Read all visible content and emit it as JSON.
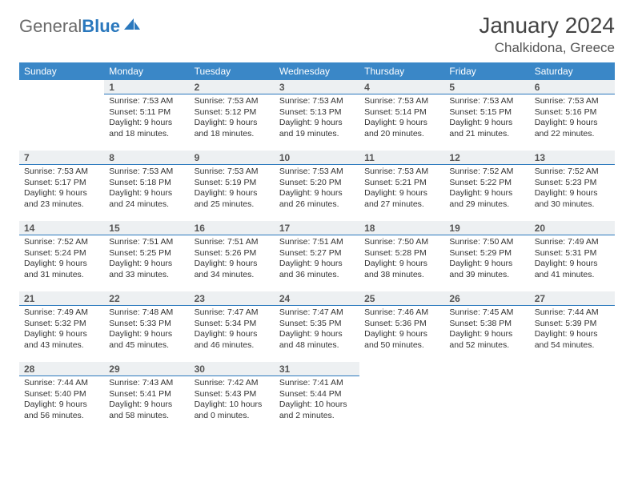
{
  "logo": {
    "text_general": "General",
    "text_blue": "Blue"
  },
  "title": "January 2024",
  "location": "Chalkidona, Greece",
  "colors": {
    "header_bg": "#3a87c7",
    "header_text": "#ffffff",
    "daynum_bg": "#edf0f2",
    "daynum_border": "#2a78bd",
    "text": "#333333",
    "logo_gray": "#6a6a6a",
    "logo_blue": "#2a78bd"
  },
  "day_headers": [
    "Sunday",
    "Monday",
    "Tuesday",
    "Wednesday",
    "Thursday",
    "Friday",
    "Saturday"
  ],
  "weeks": [
    [
      {
        "n": "",
        "sr": "",
        "ss": "",
        "dl": ""
      },
      {
        "n": "1",
        "sr": "Sunrise: 7:53 AM",
        "ss": "Sunset: 5:11 PM",
        "dl": "Daylight: 9 hours and 18 minutes."
      },
      {
        "n": "2",
        "sr": "Sunrise: 7:53 AM",
        "ss": "Sunset: 5:12 PM",
        "dl": "Daylight: 9 hours and 18 minutes."
      },
      {
        "n": "3",
        "sr": "Sunrise: 7:53 AM",
        "ss": "Sunset: 5:13 PM",
        "dl": "Daylight: 9 hours and 19 minutes."
      },
      {
        "n": "4",
        "sr": "Sunrise: 7:53 AM",
        "ss": "Sunset: 5:14 PM",
        "dl": "Daylight: 9 hours and 20 minutes."
      },
      {
        "n": "5",
        "sr": "Sunrise: 7:53 AM",
        "ss": "Sunset: 5:15 PM",
        "dl": "Daylight: 9 hours and 21 minutes."
      },
      {
        "n": "6",
        "sr": "Sunrise: 7:53 AM",
        "ss": "Sunset: 5:16 PM",
        "dl": "Daylight: 9 hours and 22 minutes."
      }
    ],
    [
      {
        "n": "7",
        "sr": "Sunrise: 7:53 AM",
        "ss": "Sunset: 5:17 PM",
        "dl": "Daylight: 9 hours and 23 minutes."
      },
      {
        "n": "8",
        "sr": "Sunrise: 7:53 AM",
        "ss": "Sunset: 5:18 PM",
        "dl": "Daylight: 9 hours and 24 minutes."
      },
      {
        "n": "9",
        "sr": "Sunrise: 7:53 AM",
        "ss": "Sunset: 5:19 PM",
        "dl": "Daylight: 9 hours and 25 minutes."
      },
      {
        "n": "10",
        "sr": "Sunrise: 7:53 AM",
        "ss": "Sunset: 5:20 PM",
        "dl": "Daylight: 9 hours and 26 minutes."
      },
      {
        "n": "11",
        "sr": "Sunrise: 7:53 AM",
        "ss": "Sunset: 5:21 PM",
        "dl": "Daylight: 9 hours and 27 minutes."
      },
      {
        "n": "12",
        "sr": "Sunrise: 7:52 AM",
        "ss": "Sunset: 5:22 PM",
        "dl": "Daylight: 9 hours and 29 minutes."
      },
      {
        "n": "13",
        "sr": "Sunrise: 7:52 AM",
        "ss": "Sunset: 5:23 PM",
        "dl": "Daylight: 9 hours and 30 minutes."
      }
    ],
    [
      {
        "n": "14",
        "sr": "Sunrise: 7:52 AM",
        "ss": "Sunset: 5:24 PM",
        "dl": "Daylight: 9 hours and 31 minutes."
      },
      {
        "n": "15",
        "sr": "Sunrise: 7:51 AM",
        "ss": "Sunset: 5:25 PM",
        "dl": "Daylight: 9 hours and 33 minutes."
      },
      {
        "n": "16",
        "sr": "Sunrise: 7:51 AM",
        "ss": "Sunset: 5:26 PM",
        "dl": "Daylight: 9 hours and 34 minutes."
      },
      {
        "n": "17",
        "sr": "Sunrise: 7:51 AM",
        "ss": "Sunset: 5:27 PM",
        "dl": "Daylight: 9 hours and 36 minutes."
      },
      {
        "n": "18",
        "sr": "Sunrise: 7:50 AM",
        "ss": "Sunset: 5:28 PM",
        "dl": "Daylight: 9 hours and 38 minutes."
      },
      {
        "n": "19",
        "sr": "Sunrise: 7:50 AM",
        "ss": "Sunset: 5:29 PM",
        "dl": "Daylight: 9 hours and 39 minutes."
      },
      {
        "n": "20",
        "sr": "Sunrise: 7:49 AM",
        "ss": "Sunset: 5:31 PM",
        "dl": "Daylight: 9 hours and 41 minutes."
      }
    ],
    [
      {
        "n": "21",
        "sr": "Sunrise: 7:49 AM",
        "ss": "Sunset: 5:32 PM",
        "dl": "Daylight: 9 hours and 43 minutes."
      },
      {
        "n": "22",
        "sr": "Sunrise: 7:48 AM",
        "ss": "Sunset: 5:33 PM",
        "dl": "Daylight: 9 hours and 45 minutes."
      },
      {
        "n": "23",
        "sr": "Sunrise: 7:47 AM",
        "ss": "Sunset: 5:34 PM",
        "dl": "Daylight: 9 hours and 46 minutes."
      },
      {
        "n": "24",
        "sr": "Sunrise: 7:47 AM",
        "ss": "Sunset: 5:35 PM",
        "dl": "Daylight: 9 hours and 48 minutes."
      },
      {
        "n": "25",
        "sr": "Sunrise: 7:46 AM",
        "ss": "Sunset: 5:36 PM",
        "dl": "Daylight: 9 hours and 50 minutes."
      },
      {
        "n": "26",
        "sr": "Sunrise: 7:45 AM",
        "ss": "Sunset: 5:38 PM",
        "dl": "Daylight: 9 hours and 52 minutes."
      },
      {
        "n": "27",
        "sr": "Sunrise: 7:44 AM",
        "ss": "Sunset: 5:39 PM",
        "dl": "Daylight: 9 hours and 54 minutes."
      }
    ],
    [
      {
        "n": "28",
        "sr": "Sunrise: 7:44 AM",
        "ss": "Sunset: 5:40 PM",
        "dl": "Daylight: 9 hours and 56 minutes."
      },
      {
        "n": "29",
        "sr": "Sunrise: 7:43 AM",
        "ss": "Sunset: 5:41 PM",
        "dl": "Daylight: 9 hours and 58 minutes."
      },
      {
        "n": "30",
        "sr": "Sunrise: 7:42 AM",
        "ss": "Sunset: 5:43 PM",
        "dl": "Daylight: 10 hours and 0 minutes."
      },
      {
        "n": "31",
        "sr": "Sunrise: 7:41 AM",
        "ss": "Sunset: 5:44 PM",
        "dl": "Daylight: 10 hours and 2 minutes."
      },
      {
        "n": "",
        "sr": "",
        "ss": "",
        "dl": ""
      },
      {
        "n": "",
        "sr": "",
        "ss": "",
        "dl": ""
      },
      {
        "n": "",
        "sr": "",
        "ss": "",
        "dl": ""
      }
    ]
  ]
}
